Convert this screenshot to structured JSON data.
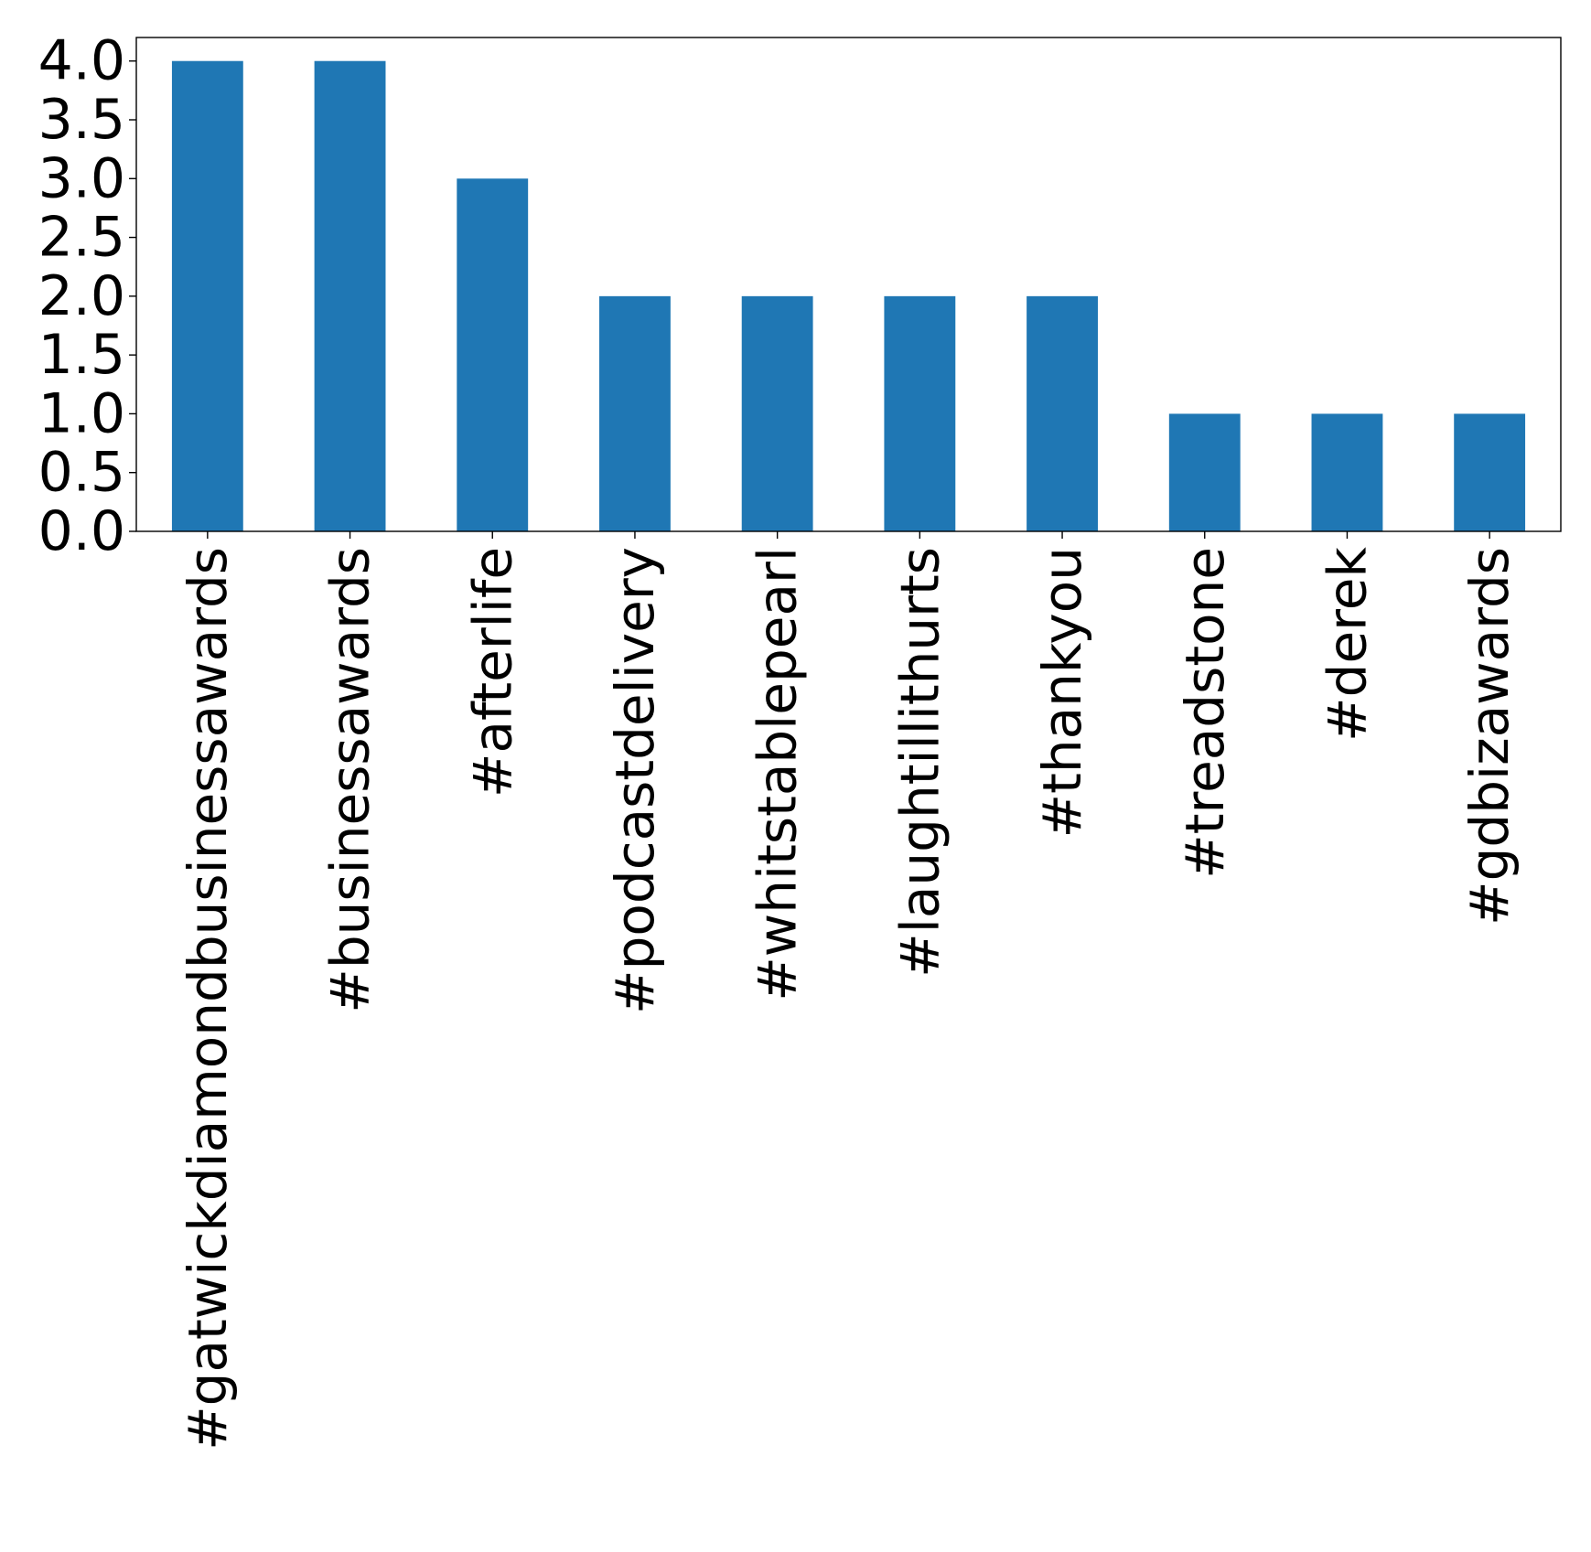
{
  "chart_data": {
    "type": "bar",
    "title": "",
    "xlabel": "",
    "ylabel": "",
    "categories": [
      "#gatwickdiamondbusinessawards",
      "#businessawards",
      "#afterlife",
      "#podcastdelivery",
      "#whitstablepearl",
      "#laughtillithurts",
      "#thankyou",
      "#treadstone",
      "#derek",
      "#gdbizawards"
    ],
    "values": [
      4,
      4,
      3,
      2,
      2,
      2,
      2,
      1,
      1,
      1
    ],
    "ylim": [
      0,
      4.2
    ],
    "yticks": [
      0.0,
      0.5,
      1.0,
      1.5,
      2.0,
      2.5,
      3.0,
      3.5,
      4.0
    ],
    "ytick_labels": [
      "0.0",
      "0.5",
      "1.0",
      "1.5",
      "2.0",
      "2.5",
      "3.0",
      "3.5",
      "4.0"
    ],
    "grid": false,
    "legend": "none",
    "bar_color": "#1f77b4"
  }
}
